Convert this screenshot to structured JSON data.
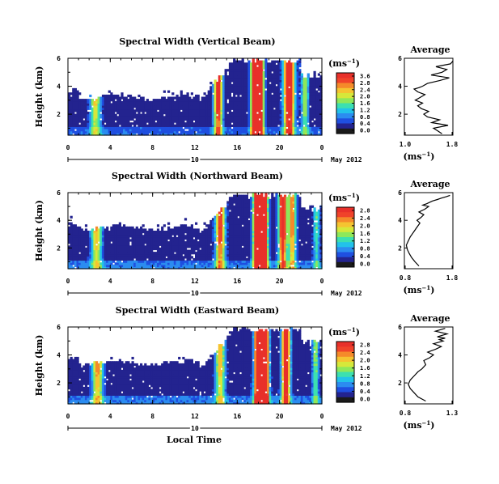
{
  "figure": {
    "date_label": "May 2012",
    "xlabel": "Local Time",
    "ylabel": "Height (km)",
    "unit_label": "(ms",
    "unit_exp": "−1",
    "unit_close": ")",
    "profile_title": "Average"
  },
  "colors": {
    "scale": [
      "#1a1a1a",
      "#23238f",
      "#1f4fe0",
      "#2b8cf0",
      "#22c2ea",
      "#3ce0b0",
      "#8ee85a",
      "#d6e83a",
      "#f5c431",
      "#f58a2a",
      "#f0432a",
      "#e8302a"
    ],
    "white_gap": "#ffffff"
  },
  "chart_data": [
    {
      "type": "heatmap",
      "title": "Spectral Width (Vertical Beam)",
      "x": {
        "range": [
          0,
          24
        ],
        "ticks": [
          "0",
          "4",
          "8",
          "12",
          "16",
          "20",
          "0"
        ],
        "day_marker": "10"
      },
      "y": {
        "range": [
          0.5,
          6
        ],
        "ticks": [
          "2",
          "4",
          "6"
        ]
      },
      "colorbar": {
        "ticks": [
          "0.0",
          "0.4",
          "0.8",
          "1.2",
          "1.6",
          "2.0",
          "2.4",
          "2.8",
          "3.6"
        ]
      },
      "profile": {
        "xticks": [
          "1.0",
          "1.8"
        ],
        "xlim": [
          1.0,
          1.8
        ],
        "yticks": [
          "2",
          "4",
          "6"
        ],
        "x": [
          1.62,
          1.55,
          1.48,
          1.72,
          1.45,
          1.58,
          1.38,
          1.32,
          1.4,
          1.28,
          1.22,
          1.3,
          1.18,
          1.26,
          1.34,
          1.22,
          1.16,
          1.24,
          1.3,
          1.38,
          1.58,
          1.74,
          1.44,
          1.62,
          1.7,
          1.52,
          1.76,
          1.8
        ],
        "y": [
          0.6,
          0.8,
          1.0,
          1.2,
          1.4,
          1.6,
          1.8,
          2.0,
          2.2,
          2.4,
          2.6,
          2.8,
          3.0,
          3.2,
          3.4,
          3.6,
          3.8,
          3.9,
          4.0,
          4.2,
          4.4,
          4.6,
          4.8,
          5.0,
          5.2,
          5.4,
          5.6,
          5.8
        ]
      }
    },
    {
      "type": "heatmap",
      "title": "Spectral Width (Northward Beam)",
      "x": {
        "range": [
          0,
          24
        ],
        "ticks": [
          "0",
          "4",
          "8",
          "12",
          "16",
          "20",
          "0"
        ],
        "day_marker": "10"
      },
      "y": {
        "range": [
          0.5,
          6
        ],
        "ticks": [
          "2",
          "4",
          "6"
        ]
      },
      "colorbar": {
        "ticks": [
          "0.0",
          "0.4",
          "0.8",
          "1.2",
          "1.6",
          "2.0",
          "2.4",
          "2.8"
        ]
      },
      "profile": {
        "xticks": [
          "0.8",
          "1.8"
        ],
        "xlim": [
          0.8,
          1.8
        ],
        "yticks": [
          "2",
          "4",
          "6"
        ],
        "x": [
          1.1,
          1.02,
          0.95,
          0.9,
          0.86,
          0.84,
          0.88,
          0.92,
          0.96,
          1.0,
          1.04,
          1.08,
          1.12,
          1.06,
          1.14,
          1.2,
          1.1,
          1.22,
          1.3,
          1.18,
          1.26,
          1.38,
          1.48,
          1.56,
          1.66,
          1.74
        ],
        "y": [
          0.7,
          1.0,
          1.3,
          1.6,
          1.9,
          2.2,
          2.5,
          2.8,
          3.0,
          3.2,
          3.4,
          3.6,
          3.8,
          4.0,
          4.2,
          4.4,
          4.6,
          4.8,
          5.0,
          5.1,
          5.2,
          5.4,
          5.5,
          5.6,
          5.7,
          5.8
        ]
      }
    },
    {
      "type": "heatmap",
      "title": "Spectral Width (Eastward Beam)",
      "x": {
        "range": [
          0,
          24
        ],
        "ticks": [
          "0",
          "4",
          "8",
          "12",
          "16",
          "20",
          "0"
        ],
        "day_marker": "10"
      },
      "y": {
        "range": [
          0.5,
          6
        ],
        "ticks": [
          "2",
          "4",
          "6"
        ]
      },
      "colorbar": {
        "ticks": [
          "0.0",
          "0.4",
          "0.8",
          "1.2",
          "1.6",
          "2.0",
          "2.4",
          "2.8"
        ]
      },
      "profile": {
        "xticks": [
          "0.8",
          "1.3"
        ],
        "xlim": [
          0.8,
          1.3
        ],
        "yticks": [
          "2",
          "4",
          "6"
        ],
        "x": [
          1.02,
          0.94,
          0.9,
          0.86,
          0.84,
          0.86,
          0.9,
          0.94,
          0.98,
          1.02,
          1.0,
          1.06,
          1.1,
          1.04,
          1.12,
          1.18,
          1.1,
          1.2,
          1.16,
          1.22,
          1.14,
          1.24,
          1.12,
          1.22
        ],
        "y": [
          0.7,
          1.0,
          1.3,
          1.6,
          1.9,
          2.2,
          2.5,
          2.8,
          3.0,
          3.3,
          3.6,
          3.8,
          4.0,
          4.2,
          4.4,
          4.6,
          4.8,
          5.0,
          5.1,
          5.2,
          5.3,
          5.5,
          5.7,
          5.9
        ]
      }
    }
  ]
}
